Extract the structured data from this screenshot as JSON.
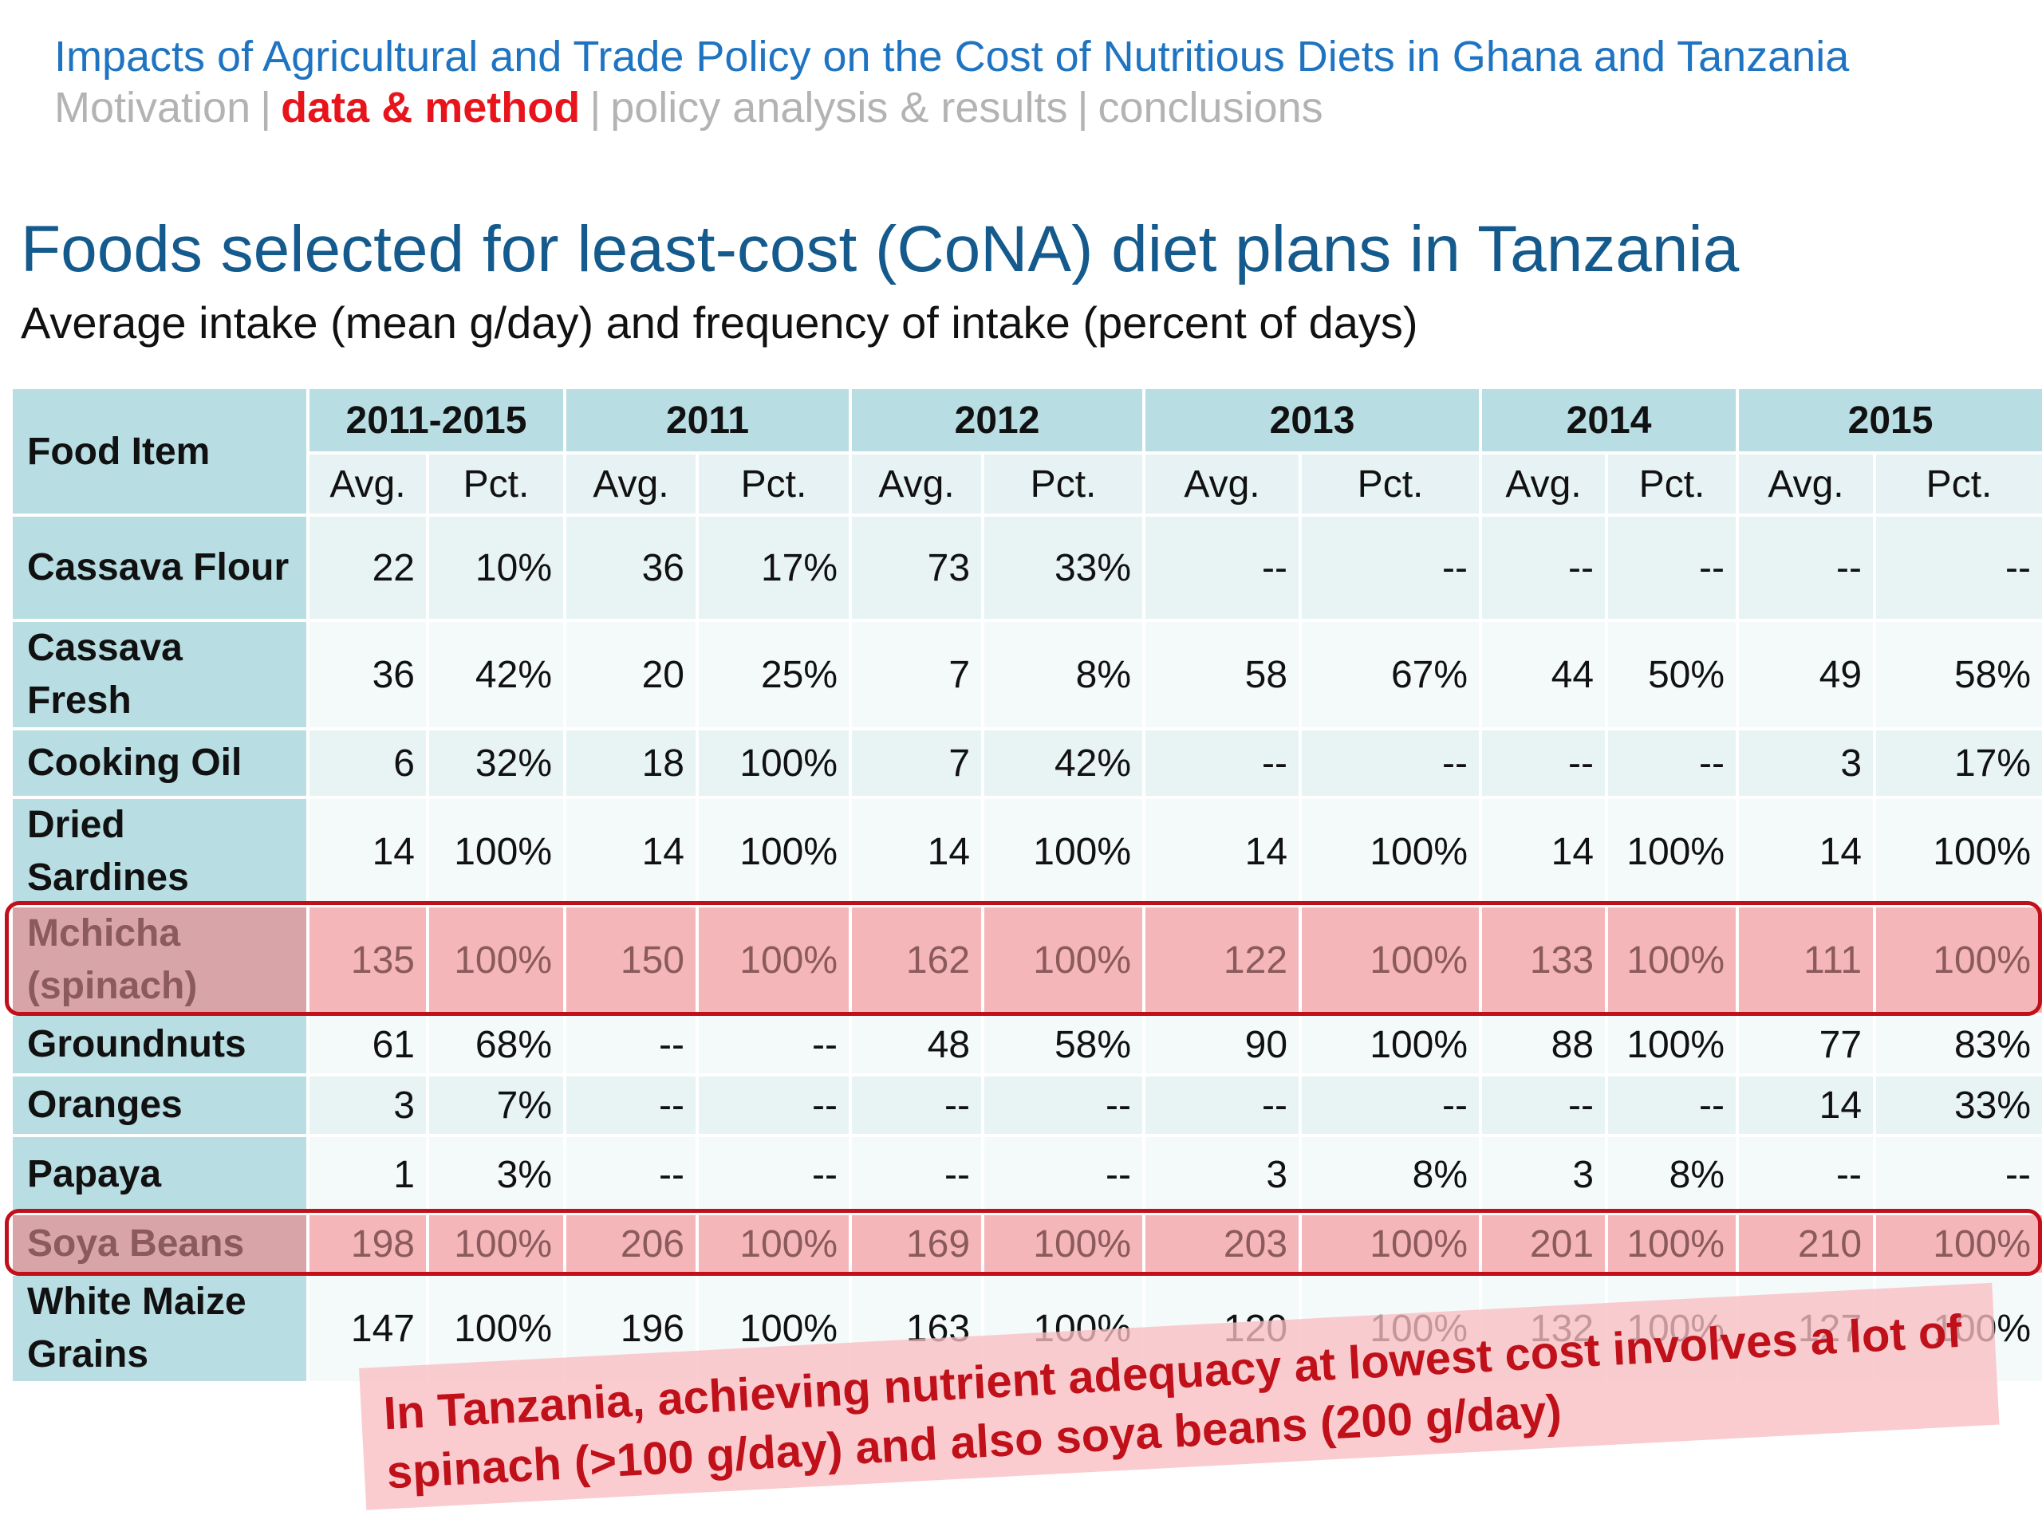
{
  "header": {
    "title": "Impacts of Agricultural and Trade Policy on the Cost of Nutritious Diets in Ghana and Tanzania",
    "breadcrumb": [
      {
        "label": "Motivation",
        "active": false
      },
      {
        "label": "data & method",
        "active": true
      },
      {
        "label": "policy analysis & results",
        "active": false
      },
      {
        "label": "conclusions",
        "active": false
      }
    ],
    "separator": "|"
  },
  "slide": {
    "title": "Foods selected for least-cost (CoNA) diet plans in Tanzania",
    "subtitle": "Average intake (mean g/day) and frequency of intake (percent of days)"
  },
  "table": {
    "food_header": "Food Item",
    "periods": [
      "2011-2015",
      "2011",
      "2012",
      "2013",
      "2014",
      "2015"
    ],
    "avg_label": "Avg.",
    "pct_label": "Pct.",
    "rows": [
      {
        "food": "Cassava Flour",
        "values": [
          "22",
          "10%",
          "36",
          "17%",
          "73",
          "33%",
          "--",
          "--",
          "--",
          "--",
          "--",
          "--"
        ],
        "highlight": false
      },
      {
        "food": "Cassava Fresh",
        "values": [
          "36",
          "42%",
          "20",
          "25%",
          "7",
          "8%",
          "58",
          "67%",
          "44",
          "50%",
          "49",
          "58%"
        ],
        "highlight": false
      },
      {
        "food": "Cooking Oil",
        "values": [
          "6",
          "32%",
          "18",
          "100%",
          "7",
          "42%",
          "--",
          "--",
          "--",
          "--",
          "3",
          "17%"
        ],
        "highlight": false
      },
      {
        "food": "Dried Sardines",
        "values": [
          "14",
          "100%",
          "14",
          "100%",
          "14",
          "100%",
          "14",
          "100%",
          "14",
          "100%",
          "14",
          "100%"
        ],
        "highlight": false
      },
      {
        "food": "Mchicha (spinach)",
        "values": [
          "135",
          "100%",
          "150",
          "100%",
          "162",
          "100%",
          "122",
          "100%",
          "133",
          "100%",
          "111",
          "100%"
        ],
        "highlight": true
      },
      {
        "food": "Groundnuts",
        "values": [
          "61",
          "68%",
          "--",
          "--",
          "48",
          "58%",
          "90",
          "100%",
          "88",
          "100%",
          "77",
          "83%"
        ],
        "highlight": false
      },
      {
        "food": "Oranges",
        "values": [
          "3",
          "7%",
          "--",
          "--",
          "--",
          "--",
          "--",
          "--",
          "--",
          "--",
          "14",
          "33%"
        ],
        "highlight": false
      },
      {
        "food": "Papaya",
        "values": [
          "1",
          "3%",
          "--",
          "--",
          "--",
          "--",
          "3",
          "8%",
          "3",
          "8%",
          "--",
          "--"
        ],
        "highlight": false
      },
      {
        "food": "Soya Beans",
        "values": [
          "198",
          "100%",
          "206",
          "100%",
          "169",
          "100%",
          "203",
          "100%",
          "201",
          "100%",
          "210",
          "100%"
        ],
        "highlight": true
      },
      {
        "food": "White Maize Grains",
        "values": [
          "147",
          "100%",
          "196",
          "100%",
          "163",
          "100%",
          "120",
          "100%",
          "132",
          "100%",
          "127",
          "100%"
        ],
        "highlight": false
      }
    ]
  },
  "callout": {
    "text": "In Tanzania, achieving nutrient adequacy at lowest cost involves a lot of spinach (>100 g/day) and also soya beans (200 g/day)"
  },
  "colors": {
    "header_blue": "#1f74c2",
    "title_blue": "#145a8c",
    "active_red": "#e8141b",
    "muted_gray": "#b3b3b3",
    "table_teal": "#b8dde2",
    "highlight_border": "#c0101a",
    "highlight_fill": "#f5b6b9"
  }
}
